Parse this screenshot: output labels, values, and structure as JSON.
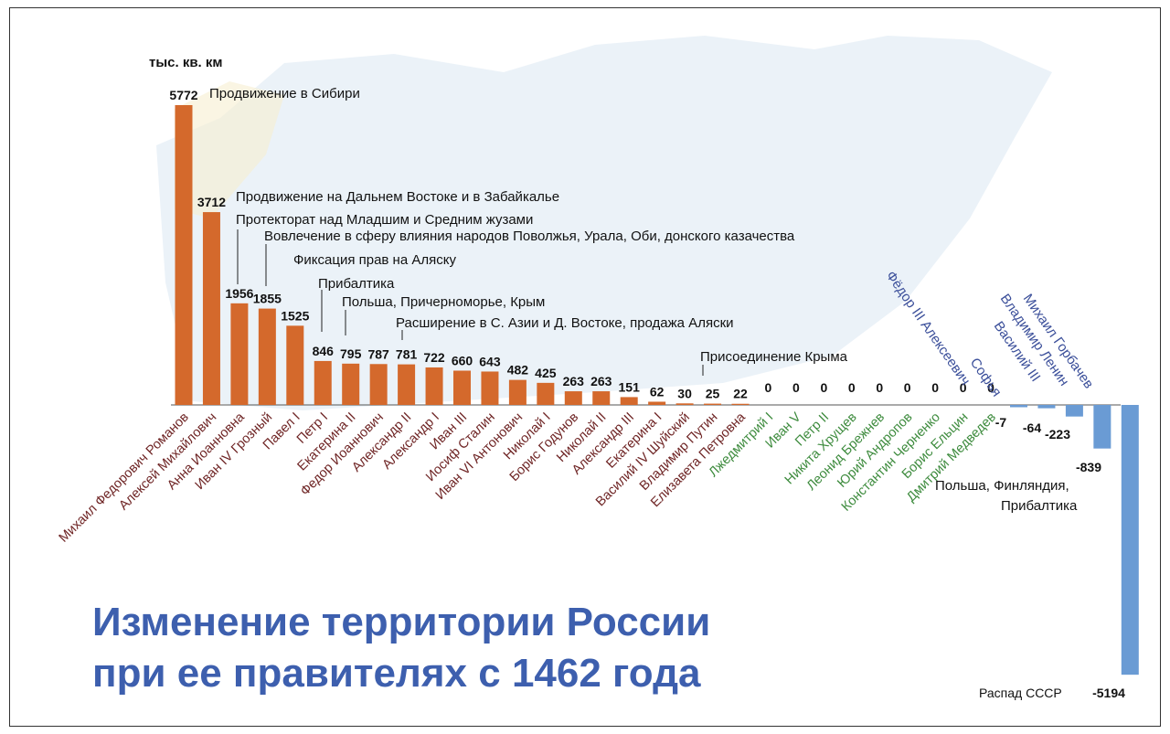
{
  "chart_data": {
    "type": "bar",
    "unit_label": "тыс. кв. км",
    "title_lines": [
      "Изменение территории России",
      "при ее правителях с 1462 года"
    ],
    "colors": {
      "positive": "#d4692c",
      "negative": "#6a9bd4",
      "label_gain": "#6e2424",
      "label_zero": "#3d8b3d",
      "label_loss": "#3b4f9a",
      "title": "#3d5fae"
    },
    "categories": [
      "Михаил Федорович Романов",
      "Алексей Михайлович",
      "Анна Иоанновна",
      "Иван IV Грозный",
      "Павел I",
      "Петр I",
      "Екатерина II",
      "Федор Иоаннович",
      "Александр II",
      "Александр I",
      "Иван III",
      "Иосиф Сталин",
      "Иван VI Антонович",
      "Николай I",
      "Борис Годунов",
      "Николай II",
      "Александр III",
      "Екатерина I",
      "Василий IV Шуйский",
      "Владимир Путин",
      "Елизавета Петровна",
      "Лжедмитрий I",
      "Иван V",
      "Петр II",
      "Никита Хрущев",
      "Леонид Брежнев",
      "Юрий Андропов",
      "Константин Черненко",
      "Борис Ельцин",
      "Дмитрий Медведев",
      "Фёдор III Алексеевич",
      "Софья",
      "Василий III",
      "Владимир Ленин",
      "Михаил Горбачев"
    ],
    "values": [
      5772,
      3712,
      1956,
      1855,
      1525,
      846,
      795,
      787,
      781,
      722,
      660,
      643,
      482,
      425,
      263,
      263,
      151,
      62,
      30,
      25,
      22,
      0,
      0,
      0,
      0,
      0,
      0,
      0,
      0,
      0,
      -7,
      -64,
      -223,
      -839,
      -5194
    ],
    "value_labels": [
      "5772",
      "3712",
      "1956",
      "1855",
      "1525",
      "846",
      "795",
      "787",
      "781",
      "722",
      "660",
      "643",
      "482",
      "425",
      "263",
      "263",
      "151",
      "62",
      "30",
      "25",
      "22",
      "0",
      "0",
      "0",
      "0",
      "0",
      "0",
      "0",
      "0",
      "0",
      "-7",
      "-64",
      "-223",
      "-839",
      "-5194"
    ],
    "annotations": [
      "Продвижение в Сибири",
      "Продвижение на Дальнем Востоке и в Забайкалье",
      "Протекторат над Младшим и Средним жузами",
      "Вовлечение в сферу влияния народов Поволжья, Урала, Оби, донского казачества",
      "Фиксация прав на Аляску",
      "Прибалтика",
      "Польша, Причерноморье, Крым",
      "Расширение в С. Азии и Д. Востоке, продажа Аляски",
      "Присоединение Крыма",
      "Польша, Финляндия,",
      "Прибалтика",
      "Распад СССР"
    ]
  }
}
